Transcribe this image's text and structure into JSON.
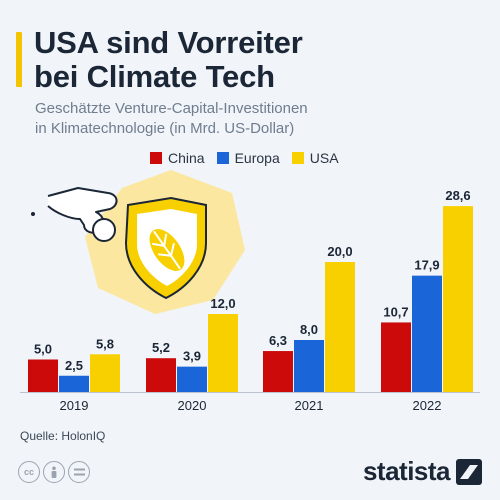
{
  "title": {
    "line1": "USA sind Vorreiter",
    "line2": "bei Climate Tech"
  },
  "subtitle": {
    "line1": "Geschätzte Venture-Capital-Investitionen",
    "line2": "in Klimatechnologie (in Mrd. US-Dollar)"
  },
  "source": "Quelle: HolonIQ",
  "brand": "statista",
  "colors": {
    "china": "#cc0a0a",
    "europa": "#1a66d9",
    "usa": "#f8d000",
    "accent": "#f5c400",
    "illustration_bg": "#fbe7a0"
  },
  "icons": [
    "cc-icon",
    "attribution-icon",
    "no-derivatives-icon",
    "statista-logo-icon",
    "hand-coin-leaf-illustration"
  ],
  "chart_data": {
    "type": "bar",
    "categories": [
      "2019",
      "2020",
      "2021",
      "2022"
    ],
    "series": [
      {
        "name": "China",
        "values": [
          5.0,
          5.2,
          6.3,
          10.7
        ],
        "labels": [
          "5,0",
          "5,2",
          "6,3",
          "10,7"
        ]
      },
      {
        "name": "Europa",
        "values": [
          2.5,
          3.9,
          8.0,
          17.9
        ],
        "labels": [
          "2,5",
          "3,9",
          "8,0",
          "17,9"
        ]
      },
      {
        "name": "USA",
        "values": [
          5.8,
          12.0,
          20.0,
          28.6
        ],
        "labels": [
          "5,8",
          "12,0",
          "20,0",
          "28,6"
        ]
      }
    ],
    "ylim": [
      0,
      30
    ],
    "grid": false,
    "legend": "top-center"
  }
}
